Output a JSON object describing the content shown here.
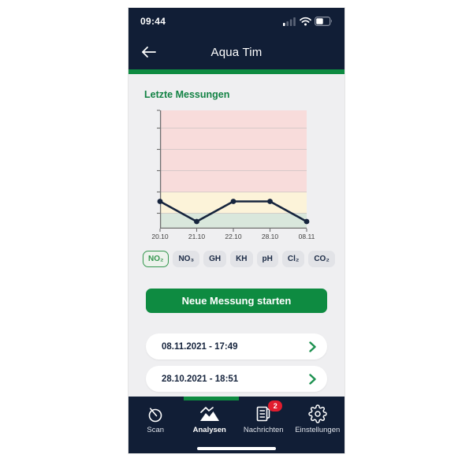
{
  "status_bar": {
    "time": "09:44",
    "icons": [
      "cellular-signal",
      "wifi",
      "battery"
    ]
  },
  "header": {
    "title": "Aqua Tim",
    "back_icon": "arrow-left"
  },
  "section": {
    "title": "Letzte Messungen"
  },
  "chart_data": {
    "type": "line",
    "title": "Letzte Messungen",
    "selected_parameter": "NO₂",
    "x": [
      "20.10",
      "21.10",
      "22.10",
      "28.10",
      "08.11"
    ],
    "series": [
      {
        "name": "NO₂",
        "values": [
          0.23,
          0.06,
          0.23,
          0.23,
          0.06
        ]
      }
    ],
    "values_note": "normalized 0-1 of plot height; no numeric y tick labels visible",
    "ylim": [
      0,
      1
    ],
    "grid": true,
    "legend": false,
    "gridlines": [
      0.13,
      0.31,
      0.49,
      0.67,
      0.85
    ],
    "zones": [
      {
        "name": "good",
        "color": "#d9e7dc",
        "from": 0,
        "to": 0.13
      },
      {
        "name": "warning",
        "color": "#fcf3d9",
        "from": 0.13,
        "to": 0.31
      },
      {
        "name": "danger",
        "color": "#f8dcdb",
        "from": 0.31,
        "to": 1
      }
    ],
    "line_color": "#16243d",
    "axis_color": "#6f6f6f"
  },
  "parameters": [
    {
      "label": "NO₂",
      "selected": true
    },
    {
      "label": "NO₃",
      "selected": false
    },
    {
      "label": "GH",
      "selected": false
    },
    {
      "label": "KH",
      "selected": false
    },
    {
      "label": "pH",
      "selected": false
    },
    {
      "label": "Cl₂",
      "selected": false
    },
    {
      "label": "CO₂",
      "selected": false
    }
  ],
  "primary_button": {
    "label": "Neue Messung starten"
  },
  "measurements": [
    {
      "label": "08.11.2021 - 17:49"
    },
    {
      "label": "28.10.2021 - 18:51"
    }
  ],
  "tab_bar": {
    "tabs": [
      {
        "label": "Scan",
        "icon": "droplet-scan",
        "active": false
      },
      {
        "label": "Analysen",
        "icon": "chart-mountains",
        "active": true
      },
      {
        "label": "Nachrichten",
        "icon": "news-document",
        "active": false,
        "badge": "2"
      },
      {
        "label": "Einstellungen",
        "icon": "gear",
        "active": false
      }
    ]
  },
  "colors": {
    "navy": "#111e36",
    "green": "#0e8b41",
    "content_bg": "#efeff1",
    "badge_red": "#e11d2e",
    "chip_bg": "#e2e3e7",
    "chip_selected_green": "#35974f"
  }
}
